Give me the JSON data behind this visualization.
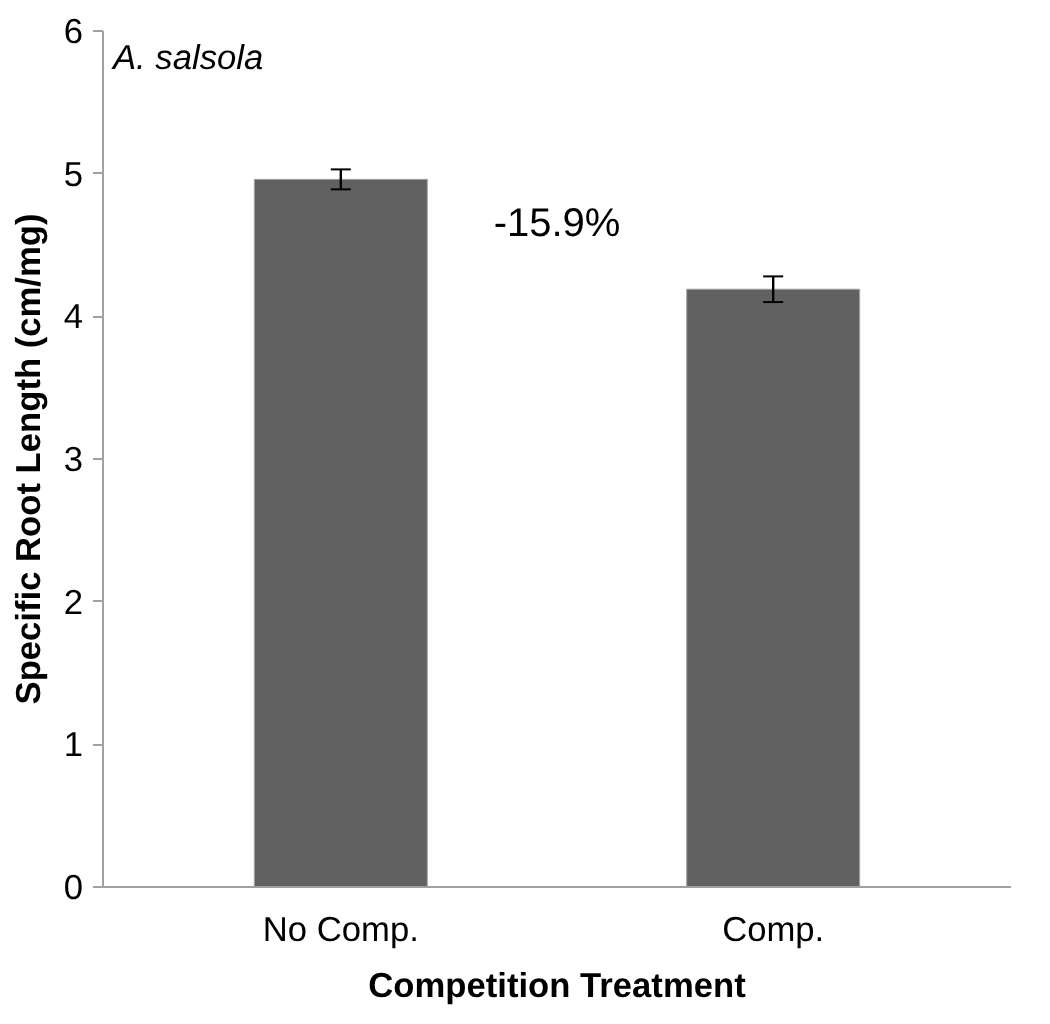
{
  "chart_data": {
    "type": "bar",
    "categories": [
      "No Comp.",
      "Comp."
    ],
    "values": [
      4.96,
      4.19
    ],
    "errors": [
      0.07,
      0.09
    ],
    "color": "#616161",
    "xlabel": "Competition Treatment",
    "ylabel": "Specific Root Length (cm/mg)",
    "ylim": [
      0,
      6
    ],
    "yticks": [
      0,
      1,
      2,
      3,
      4,
      5,
      6
    ],
    "grid": false,
    "annotations": [
      "A. salsola",
      "-15.9%"
    ]
  }
}
